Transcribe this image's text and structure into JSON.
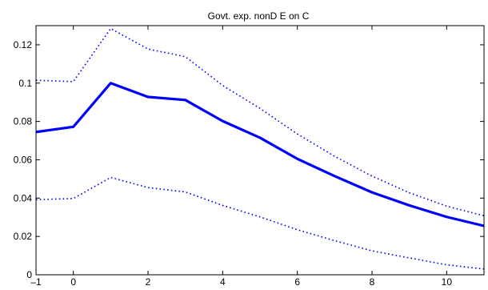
{
  "chart_data": {
    "type": "line",
    "title": "Govt. exp. nonD E on C",
    "xlabel": "",
    "ylabel": "",
    "xlim": [
      -1,
      11
    ],
    "ylim": [
      0,
      0.13
    ],
    "grid": false,
    "x_ticks": [
      -1,
      0,
      2,
      4,
      6,
      8,
      10
    ],
    "y_ticks": [
      0,
      0.02,
      0.04,
      0.06,
      0.08,
      0.1,
      0.12
    ],
    "x": [
      -1,
      0,
      1,
      2,
      3,
      4,
      5,
      6,
      7,
      8,
      9,
      10,
      11
    ],
    "series": [
      {
        "style": "solid",
        "color": "#0000ff",
        "values": [
          0.0745,
          0.0772,
          0.1,
          0.0928,
          0.0912,
          0.0802,
          0.0715,
          0.0605,
          0.0515,
          0.043,
          0.0362,
          0.0302,
          0.0255
        ]
      },
      {
        "style": "dotted",
        "color": "#0000ff",
        "values": [
          0.1015,
          0.1008,
          0.1285,
          0.1178,
          0.1138,
          0.0988,
          0.0868,
          0.0735,
          0.0618,
          0.0515,
          0.0428,
          0.0358,
          0.0308
        ]
      },
      {
        "style": "dotted",
        "color": "#0000ff",
        "values": [
          0.0392,
          0.0398,
          0.0508,
          0.0455,
          0.0432,
          0.0362,
          0.0302,
          0.0235,
          0.0178,
          0.0125,
          0.0088,
          0.0052,
          0.003
        ]
      }
    ]
  }
}
